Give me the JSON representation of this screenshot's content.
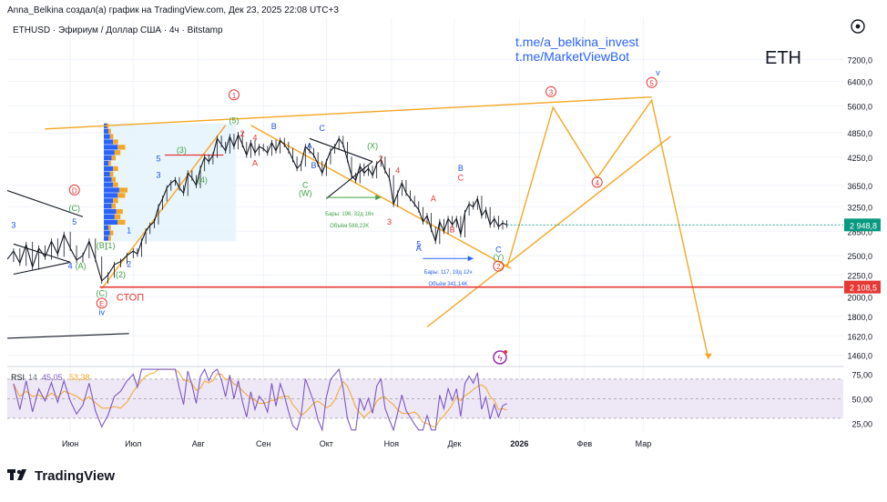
{
  "header": {
    "author_line": "Anna_Belkina создал(а) график на TradingView.com, Дек 23, 2025 22:08 UTC+3",
    "symbol_line": "ETHUSD · Эфириум / Доллар США · 4ч · Bitstamp"
  },
  "links": [
    "t.me/a_belkina_invest",
    "t.me/MarketViewBot"
  ],
  "ticker_label": "ETH",
  "footer": {
    "brand": "TradingView"
  },
  "colors": {
    "price_line": "#131722",
    "projection": "#f5a623",
    "stop_line": "#e53935",
    "wave_red": "#e53935",
    "wave_green": "#43a047",
    "wave_blue": "#1e53e5",
    "current_price_bg": "#089981",
    "stop_price_bg": "#e53935",
    "rsi_line": "#7e57c2",
    "rsi_ma": "#f5a623",
    "rsi_band": "#ede7f6",
    "profile_blue": "#2962ff",
    "profile_orange": "#f5a623",
    "profile_zone": "#e3f2fd"
  },
  "chart_data": {
    "type": "line",
    "title": "ETHUSD · Эфириум / Доллар США · 4ч · Bitstamp",
    "scale": "log",
    "ylim": [
      1380,
      9000
    ],
    "y_ticks": [
      7200,
      6400,
      5600,
      4850,
      4250,
      3650,
      3250,
      2850,
      2500,
      2250,
      2000,
      1800,
      1620,
      1460
    ],
    "y_tick_labels": [
      "7200,0",
      "6400,0",
      "5600,0",
      "4850,0",
      "4250,0",
      "3650,0",
      "3250,0",
      "2850,0",
      "2500,0",
      "2250,0",
      "2000,0",
      "1800,0",
      "1620,0",
      "1460,0"
    ],
    "x_ticks": [
      {
        "d": 30,
        "label": "Июн"
      },
      {
        "d": 60,
        "label": "Июл"
      },
      {
        "d": 91,
        "label": "Авг"
      },
      {
        "d": 122,
        "label": "Сен"
      },
      {
        "d": 152,
        "label": "Окт"
      },
      {
        "d": 183,
        "label": "Ноя"
      },
      {
        "d": 213,
        "label": "Дек"
      },
      {
        "d": 244,
        "label": "2026"
      },
      {
        "d": 275,
        "label": "Фев"
      },
      {
        "d": 303,
        "label": "Мар"
      }
    ],
    "price_series": [
      [
        0,
        2450
      ],
      [
        3,
        2560
      ],
      [
        6,
        2400
      ],
      [
        9,
        2650
      ],
      [
        12,
        2350
      ],
      [
        15,
        2600
      ],
      [
        18,
        2480
      ],
      [
        21,
        2700
      ],
      [
        24,
        2520
      ],
      [
        27,
        2800
      ],
      [
        30,
        2600
      ],
      [
        33,
        2440
      ],
      [
        36,
        2500
      ],
      [
        39,
        2700
      ],
      [
        42,
        2450
      ],
      [
        45,
        2180
      ],
      [
        48,
        2250
      ],
      [
        51,
        2380
      ],
      [
        54,
        2420
      ],
      [
        57,
        2500
      ],
      [
        60,
        2560
      ],
      [
        62,
        2520
      ],
      [
        64,
        2700
      ],
      [
        66,
        2850
      ],
      [
        68,
        2940
      ],
      [
        70,
        3000
      ],
      [
        72,
        3250
      ],
      [
        74,
        3400
      ],
      [
        76,
        3600
      ],
      [
        78,
        3700
      ],
      [
        80,
        3760
      ],
      [
        82,
        3600
      ],
      [
        84,
        3500
      ],
      [
        86,
        3900
      ],
      [
        88,
        3800
      ],
      [
        90,
        3650
      ],
      [
        92,
        4000
      ],
      [
        94,
        4250
      ],
      [
        96,
        4150
      ],
      [
        98,
        4300
      ],
      [
        100,
        4700
      ],
      [
        102,
        4550
      ],
      [
        104,
        4400
      ],
      [
        106,
        4750
      ],
      [
        108,
        4500
      ],
      [
        110,
        4800
      ],
      [
        112,
        4550
      ],
      [
        114,
        4300
      ],
      [
        116,
        4600
      ],
      [
        118,
        4350
      ],
      [
        120,
        4500
      ],
      [
        122,
        4450
      ],
      [
        124,
        4350
      ],
      [
        126,
        4600
      ],
      [
        128,
        4400
      ],
      [
        130,
        4650
      ],
      [
        132,
        4550
      ],
      [
        134,
        4400
      ],
      [
        136,
        4200
      ],
      [
        138,
        4000
      ],
      [
        140,
        4100
      ],
      [
        142,
        4500
      ],
      [
        144,
        4400
      ],
      [
        146,
        4300
      ],
      [
        148,
        4100
      ],
      [
        150,
        3900
      ],
      [
        152,
        4150
      ],
      [
        154,
        4400
      ],
      [
        156,
        4500
      ],
      [
        158,
        4700
      ],
      [
        160,
        4550
      ],
      [
        162,
        4200
      ],
      [
        164,
        3850
      ],
      [
        166,
        3750
      ],
      [
        168,
        4050
      ],
      [
        170,
        3900
      ],
      [
        172,
        4000
      ],
      [
        174,
        3850
      ],
      [
        176,
        4100
      ],
      [
        178,
        4200
      ],
      [
        180,
        3950
      ],
      [
        182,
        3800
      ],
      [
        184,
        3300
      ],
      [
        186,
        3500
      ],
      [
        188,
        3700
      ],
      [
        190,
        3500
      ],
      [
        192,
        3400
      ],
      [
        194,
        3300
      ],
      [
        196,
        3200
      ],
      [
        198,
        3000
      ],
      [
        200,
        3100
      ],
      [
        202,
        2880
      ],
      [
        204,
        2700
      ],
      [
        206,
        3000
      ],
      [
        208,
        2850
      ],
      [
        210,
        3050
      ],
      [
        212,
        2950
      ],
      [
        214,
        3050
      ],
      [
        216,
        2800
      ],
      [
        218,
        3150
      ],
      [
        220,
        3300
      ],
      [
        222,
        3250
      ],
      [
        224,
        3400
      ],
      [
        226,
        3100
      ],
      [
        228,
        3200
      ],
      [
        230,
        2950
      ],
      [
        232,
        3050
      ],
      [
        234,
        2920
      ],
      [
        236,
        2980
      ],
      [
        238,
        2948.8
      ]
    ],
    "series": [
      {
        "name": "Projection path",
        "points": [
          [
            238,
            2340
          ],
          [
            260,
            5560
          ],
          [
            281,
            3800
          ],
          [
            307,
            5780
          ],
          [
            334,
            1430
          ]
        ]
      },
      {
        "name": "Upper channel",
        "points": [
          [
            18,
            4950
          ],
          [
            307,
            5880
          ]
        ]
      },
      {
        "name": "Lower channel",
        "points": [
          [
            200,
            1700
          ],
          [
            316,
            4760
          ]
        ]
      },
      {
        "name": "Wave 3 down channel",
        "points": [
          [
            116,
            5050
          ],
          [
            240,
            2330
          ]
        ]
      },
      {
        "name": "Wave 1 up channel",
        "points": [
          [
            45,
            2090
          ],
          [
            104,
            5050
          ]
        ]
      },
      {
        "name": "Left descending line",
        "points": [
          [
            0,
            3550
          ],
          [
            36,
            3080
          ]
        ]
      },
      {
        "name": "Left wedge upper",
        "points": [
          [
            3,
            2660
          ],
          [
            30,
            2410
          ]
        ]
      },
      {
        "name": "Left wedge lower",
        "points": [
          [
            3,
            2260
          ],
          [
            30,
            2410
          ]
        ]
      },
      {
        "name": "Bottom left line",
        "points": [
          [
            0,
            1600
          ],
          [
            58,
            1640
          ]
        ]
      },
      {
        "name": "Triangle upper",
        "points": [
          [
            144,
            4700
          ],
          [
            174,
            4150
          ]
        ]
      },
      {
        "name": "Triangle lower",
        "points": [
          [
            152,
            3400
          ],
          [
            174,
            4150
          ]
        ]
      }
    ],
    "current_price": {
      "value": 2948.8,
      "label": "2 948,8"
    },
    "stop_level": {
      "value": 2108.5,
      "label": "2 108,5",
      "text": "СТОП"
    },
    "volume_profile": {
      "price_start": 2700,
      "price_end": 5100,
      "bins": 22,
      "relative_volumes": [
        0.3,
        0.4,
        0.3,
        0.9,
        0.7,
        0.8,
        0.5,
        0.6,
        0.9,
        1.0,
        0.6,
        0.5,
        0.4,
        0.6,
        0.3,
        0.5,
        0.7,
        0.9,
        0.6,
        0.4,
        0.3,
        0.2
      ]
    },
    "measurements": [
      {
        "line1": "Бары: 196, 32д 16ч",
        "line2": "Объём 588,22K"
      },
      {
        "line1": "Бары: 117, 19д 12ч",
        "line2": "Объём 341,14K"
      }
    ],
    "wave_labels": [
      {
        "t": "3",
        "d": 3,
        "p": 2900,
        "c": "blue"
      },
      {
        "t": "5",
        "d": 32,
        "p": 2950,
        "c": "blue"
      },
      {
        "t": "(C)",
        "d": 32,
        "p": 3180,
        "c": "green"
      },
      {
        "t": "D",
        "d": 32,
        "p": 3500,
        "c": "red",
        "circle": true
      },
      {
        "t": "4",
        "d": 30,
        "p": 2330,
        "c": "blue"
      },
      {
        "t": "(A)",
        "d": 35,
        "p": 2330,
        "c": "green"
      },
      {
        "t": "(B)",
        "d": 45,
        "p": 2600,
        "c": "green"
      },
      {
        "t": "(1)",
        "d": 49,
        "p": 2600,
        "c": "green"
      },
      {
        "t": "(C)",
        "d": 45,
        "p": 2010,
        "c": "green"
      },
      {
        "t": "E",
        "d": 45,
        "p": 1900,
        "c": "red",
        "circle": true
      },
      {
        "t": "iv",
        "d": 45,
        "p": 1810,
        "c": "blue"
      },
      {
        "t": "(2)",
        "d": 54,
        "p": 2220,
        "c": "green"
      },
      {
        "t": "1",
        "d": 58,
        "p": 2820,
        "c": "blue"
      },
      {
        "t": "2",
        "d": 58,
        "p": 2350,
        "c": "blue"
      },
      {
        "t": "3",
        "d": 72,
        "p": 3800,
        "c": "blue"
      },
      {
        "t": "5",
        "d": 72,
        "p": 4150,
        "c": "blue"
      },
      {
        "t": "(3)",
        "d": 83,
        "p": 4350,
        "c": "green"
      },
      {
        "t": "(4)",
        "d": 93,
        "p": 3700,
        "c": "green"
      },
      {
        "t": "1",
        "d": 108,
        "p": 5850,
        "c": "red",
        "circle": true
      },
      {
        "t": "(5)",
        "d": 108,
        "p": 5100,
        "c": "green"
      },
      {
        "t": "2",
        "d": 112,
        "p": 4750,
        "c": "red"
      },
      {
        "t": "4",
        "d": 118,
        "p": 4650,
        "c": "red"
      },
      {
        "t": "B",
        "d": 127,
        "p": 4950,
        "c": "blue"
      },
      {
        "t": "A",
        "d": 118,
        "p": 4050,
        "c": "red"
      },
      {
        "t": "A",
        "d": 144,
        "p": 4450,
        "c": "blue"
      },
      {
        "t": "C",
        "d": 150,
        "p": 4900,
        "c": "blue"
      },
      {
        "t": "B",
        "d": 146,
        "p": 4000,
        "c": "blue"
      },
      {
        "t": "C",
        "d": 142,
        "p": 3600,
        "c": "green"
      },
      {
        "t": "(W)",
        "d": 142,
        "p": 3450,
        "c": "green"
      },
      {
        "t": "(X)",
        "d": 174,
        "p": 4450,
        "c": "green"
      },
      {
        "t": "2",
        "d": 178,
        "p": 4150,
        "c": "red"
      },
      {
        "t": "4",
        "d": 186,
        "p": 3900,
        "c": "red"
      },
      {
        "t": "3",
        "d": 182,
        "p": 2950,
        "c": "red"
      },
      {
        "t": "A",
        "d": 203,
        "p": 3350,
        "c": "red"
      },
      {
        "t": "B",
        "d": 216,
        "p": 3950,
        "c": "blue"
      },
      {
        "t": "C",
        "d": 216,
        "p": 3750,
        "c": "red"
      },
      {
        "t": "B",
        "d": 212,
        "p": 2830,
        "c": "red"
      },
      {
        "t": "5",
        "d": 196,
        "p": 2620,
        "c": "blue"
      },
      {
        "t": "A",
        "d": 196,
        "p": 2560,
        "c": "blue"
      },
      {
        "t": "C",
        "d": 234,
        "p": 2540,
        "c": "blue"
      },
      {
        "t": "(Y)",
        "d": 234,
        "p": 2440,
        "c": "green"
      },
      {
        "t": "2",
        "d": 234,
        "p": 2320,
        "c": "red",
        "circle": true
      },
      {
        "t": "3",
        "d": 259,
        "p": 5950,
        "c": "red",
        "circle": true
      },
      {
        "t": "4",
        "d": 281,
        "p": 3650,
        "c": "red",
        "circle": true
      },
      {
        "t": "5",
        "d": 307,
        "p": 6250,
        "c": "red",
        "circle": true
      },
      {
        "t": "v",
        "d": 310,
        "p": 6600,
        "c": "blue"
      }
    ],
    "rsi": {
      "label": "RSI",
      "length": 14,
      "value": 45.05,
      "value_label": "45,05",
      "ma_value": 53.38,
      "ma_label": "53,38",
      "ylim": [
        15,
        82
      ],
      "upper_band": 70,
      "lower_band": 30,
      "mid_line": 50,
      "y_tick_labels": [
        "75,00",
        "50,00",
        "25,00"
      ],
      "y_tick_values": [
        75,
        50,
        25
      ]
    }
  }
}
